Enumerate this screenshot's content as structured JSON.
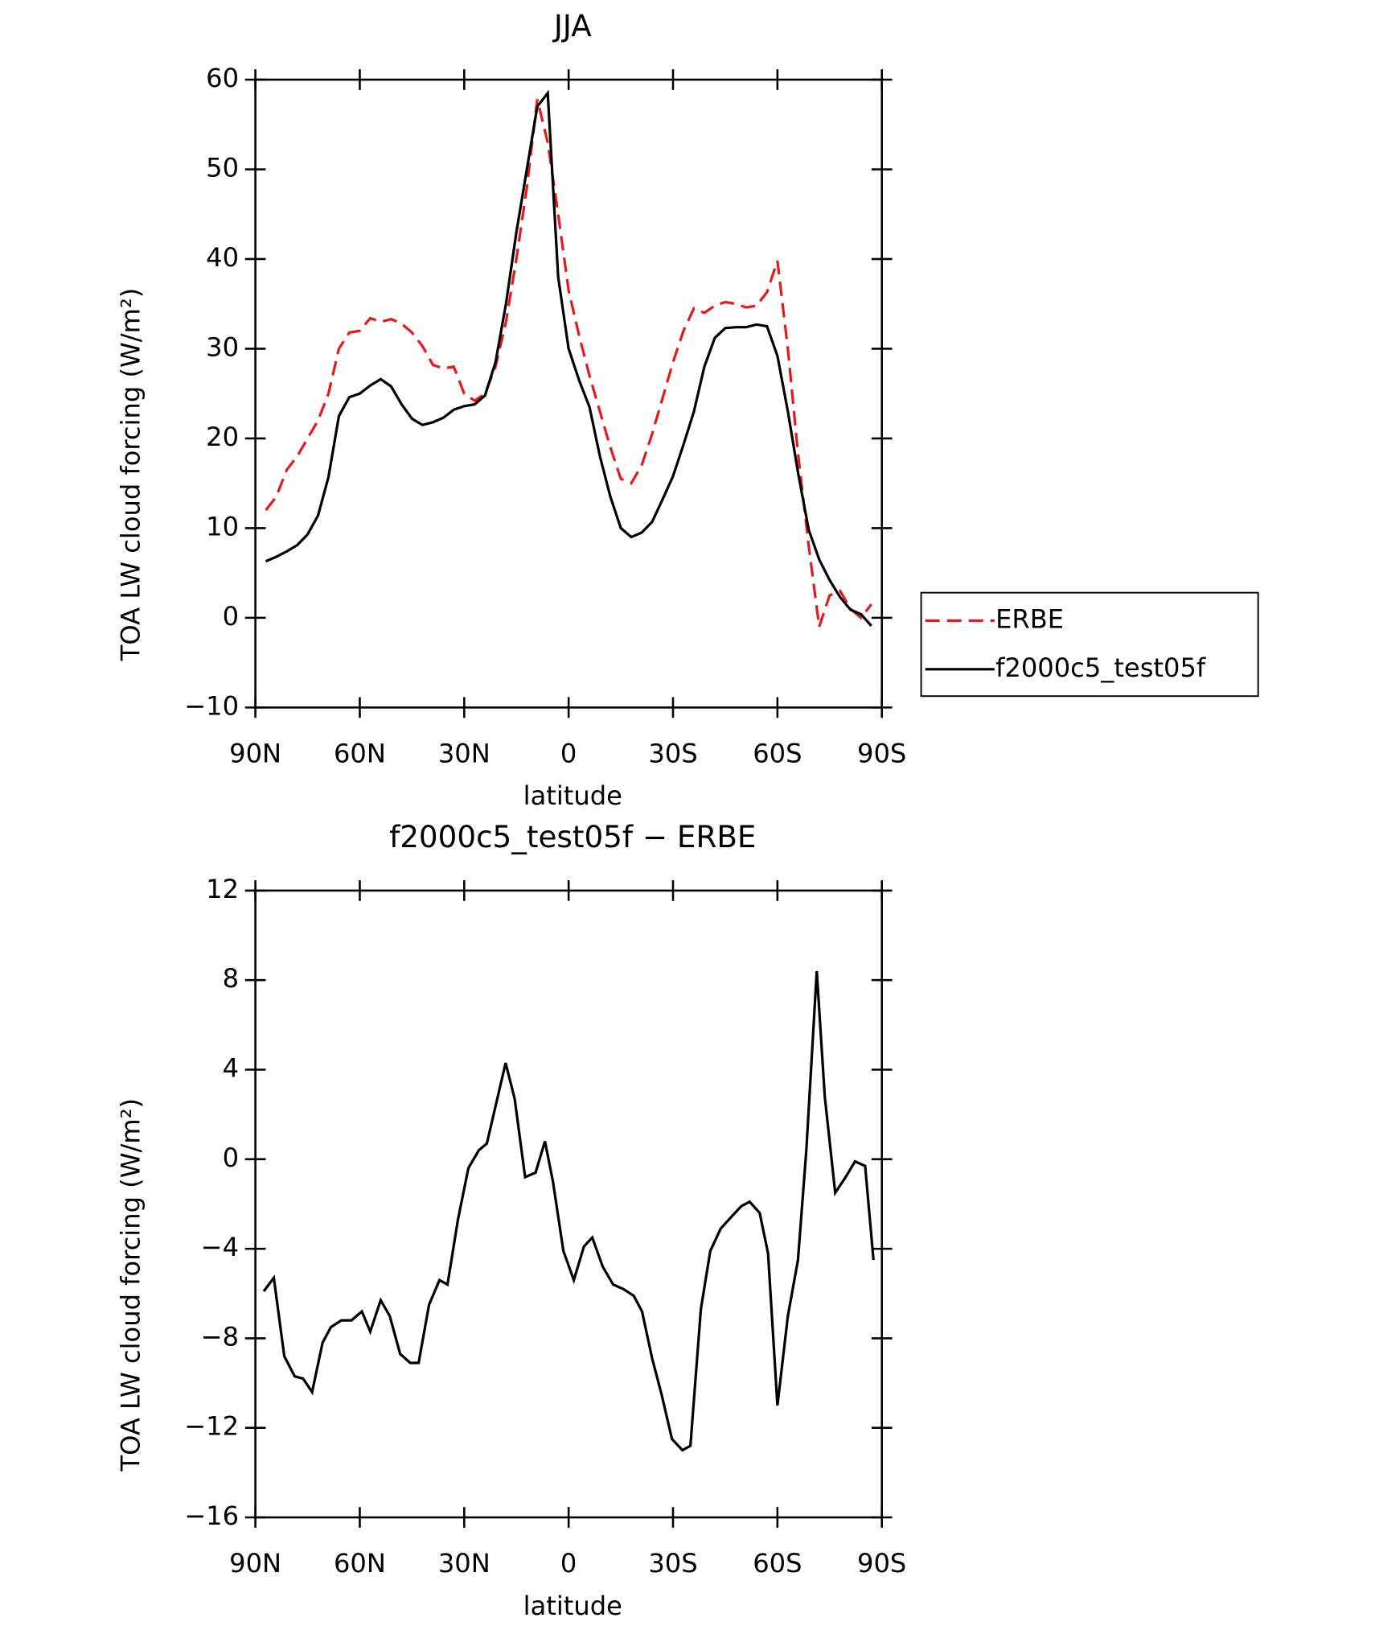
{
  "chart_data": [
    {
      "type": "line",
      "title": "JJA",
      "xlabel": "latitude",
      "ylabel": "TOA LW cloud forcing (W/m²)",
      "xlim": [
        90,
        -90
      ],
      "xticks": [
        {
          "value": 90,
          "label": "90N"
        },
        {
          "value": 60,
          "label": "60N"
        },
        {
          "value": 30,
          "label": "30N"
        },
        0,
        {
          "value": -30,
          "label": "30S"
        },
        {
          "value": -60,
          "label": "60S"
        },
        {
          "value": -90,
          "label": "90S"
        }
      ],
      "ylim": [
        -10,
        60
      ],
      "yticks": [
        {
          "value": -10,
          "label": "−10"
        },
        0,
        10,
        20,
        30,
        40,
        50,
        60
      ],
      "x": [
        87,
        84,
        81,
        78,
        75,
        72,
        69,
        66,
        63,
        60,
        57,
        54,
        51,
        48,
        45,
        42,
        39,
        36,
        33,
        30,
        27,
        24,
        21,
        18,
        15,
        12,
        9,
        6,
        3,
        0,
        -3,
        -6,
        -9,
        -12,
        -15,
        -18,
        -21,
        -24,
        -27,
        -30,
        -33,
        -36,
        -39,
        -42,
        -45,
        -48,
        -51,
        -54,
        -57,
        -60,
        -63,
        -66,
        -69,
        -72,
        -75,
        -78,
        -81,
        -84,
        -87
      ],
      "series": [
        {
          "name": "ERBE",
          "color": "#e41a1c",
          "dash": true,
          "values": [
            12,
            13.5,
            16.5,
            18,
            20,
            22,
            25,
            30,
            31.8,
            32,
            33.4,
            33,
            33.3,
            32.8,
            31.8,
            30.3,
            28.2,
            27.8,
            28,
            25,
            24.2,
            25,
            28,
            33,
            40,
            48,
            57.8,
            53,
            45,
            36.5,
            31.5,
            27,
            23,
            19,
            15.5,
            15,
            17,
            20.5,
            24.5,
            28.5,
            32,
            34.5,
            34,
            34.8,
            35.2,
            35,
            34.6,
            34.8,
            36.3,
            39.8,
            30,
            18,
            8,
            -1,
            2.5,
            3,
            1,
            0,
            1.5
          ]
        },
        {
          "name": "f2000c5_test05f",
          "color": "#000000",
          "dash": false,
          "values": [
            6.3,
            6.8,
            7.4,
            8.1,
            9.3,
            11.4,
            15.7,
            22.5,
            24.6,
            25,
            25.9,
            26.6,
            25.8,
            23.8,
            22.2,
            21.5,
            21.8,
            22.3,
            23.2,
            23.6,
            23.8,
            24.8,
            28.5,
            35,
            43,
            50,
            57,
            58.5,
            38,
            30,
            26.5,
            23.5,
            18,
            13.5,
            10,
            9,
            9.5,
            10.7,
            13.2,
            15.8,
            19.3,
            23,
            28,
            31.2,
            32.3,
            32.4,
            32.4,
            32.7,
            32.5,
            29.2,
            23,
            16,
            9.8,
            6.5,
            4.2,
            2.3,
            0.9,
            0.4,
            -0.9
          ]
        }
      ]
    },
    {
      "type": "line",
      "title": "f2000c5_test05f − ERBE",
      "xlabel": "latitude",
      "ylabel": "TOA LW cloud forcing (W/m²)",
      "xlim": [
        90,
        -90
      ],
      "xticks": [
        {
          "value": 90,
          "label": "90N"
        },
        {
          "value": 60,
          "label": "60N"
        },
        {
          "value": 30,
          "label": "30N"
        },
        0,
        {
          "value": -30,
          "label": "30S"
        },
        {
          "value": -60,
          "label": "60S"
        },
        {
          "value": -90,
          "label": "90S"
        }
      ],
      "ylim": [
        -16,
        12
      ],
      "yticks": [
        {
          "value": -16,
          "label": "−16"
        },
        {
          "value": -12,
          "label": "−12"
        },
        {
          "value": -8,
          "label": "−8"
        },
        {
          "value": -4,
          "label": "−4"
        },
        0,
        4,
        8,
        12
      ],
      "x": [
        87.6,
        84.7,
        81.7,
        78.7,
        76.3,
        73.7,
        70.7,
        68.3,
        65.3,
        62.4,
        59.4,
        57.0,
        54.0,
        51.4,
        48.4,
        45.5,
        43.1,
        40.1,
        37.1,
        34.8,
        31.8,
        28.8,
        25.8,
        23.5,
        20.8,
        18.1,
        15.5,
        12.5,
        9.5,
        6.8,
        4.5,
        1.5,
        -1.5,
        -4.4,
        -6.8,
        -9.8,
        -12.8,
        -15.7,
        -18.7,
        -21.1,
        -24.0,
        -26.7,
        -29.7,
        -32.7,
        -35.0,
        -38.0,
        -40.7,
        -43.7,
        -46.6,
        -49.6,
        -52.0,
        -54.9,
        -57.3,
        -60.0,
        -63.0,
        -65.9,
        -68.3,
        -71.3,
        -73.6,
        -76.6,
        -79.6,
        -82.3,
        -85.2,
        -87.6
      ],
      "series": [
        {
          "color": "#000000",
          "dash": false,
          "values": [
            -5.9,
            -5.3,
            -8.8,
            -9.7,
            -9.8,
            -10.4,
            -8.2,
            -7.5,
            -7.2,
            -7.2,
            -6.8,
            -7.7,
            -6.3,
            -7,
            -8.7,
            -9.1,
            -9.1,
            -6.5,
            -5.4,
            -5.6,
            -2.7,
            -0.4,
            0.4,
            0.7,
            2.5,
            4.3,
            2.7,
            -0.8,
            -0.6,
            0.8,
            -1,
            -4.1,
            -5.4,
            -3.9,
            -3.5,
            -4.8,
            -5.6,
            -5.8,
            -6.1,
            -6.8,
            -8.9,
            -10.5,
            -12.5,
            -13,
            -12.8,
            -6.7,
            -4.1,
            -3.1,
            -2.6,
            -2.1,
            -1.9,
            -2.4,
            -4.2,
            -11,
            -7,
            -4.5,
            0.4,
            8.4,
            2.8,
            -1.5,
            -0.8,
            -0.1,
            -0.3,
            -4.5
          ]
        }
      ]
    }
  ]
}
